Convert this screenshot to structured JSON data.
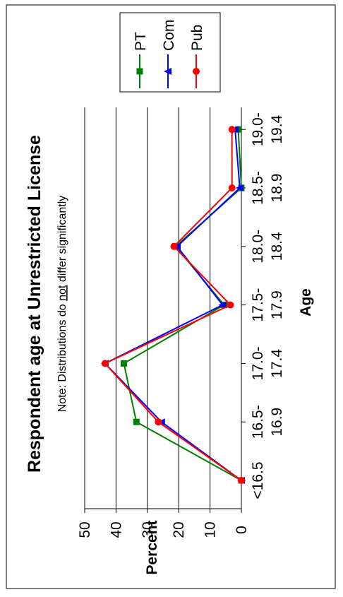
{
  "chart_data": {
    "type": "line",
    "title": "Respondent age at Unrestricted License",
    "note": {
      "prefix": "Note: Distributions do ",
      "emphasis": "not",
      "suffix": " differ significantly"
    },
    "xlabel": "Age",
    "ylabel": "Percent",
    "ylim": [
      0,
      50
    ],
    "yticks": [
      "0",
      "10",
      "20",
      "30",
      "40",
      "50"
    ],
    "grid": true,
    "legend_position": "top-right",
    "categories": [
      [
        "<16.5",
        ""
      ],
      [
        "16.5-",
        "16.9"
      ],
      [
        "17.0-",
        "17.4"
      ],
      [
        "17.5-",
        "17.9"
      ],
      [
        "18.0-",
        "18.4"
      ],
      [
        "18.5-",
        "18.9"
      ],
      [
        "19.0-",
        "19.4"
      ]
    ],
    "series": [
      {
        "name": "PT",
        "color": "#008000",
        "marker": "square",
        "values": [
          0,
          33.5,
          37.5,
          5.5,
          21,
          0,
          1
        ]
      },
      {
        "name": "Com",
        "color": "#0000ff",
        "marker": "triangle",
        "values": [
          0,
          25.5,
          43.5,
          6,
          20.5,
          0.5,
          2
        ]
      },
      {
        "name": "Pub",
        "color": "#ff0000",
        "marker": "circle",
        "values": [
          0,
          26.5,
          43.5,
          3.5,
          21.5,
          3,
          3
        ]
      }
    ]
  }
}
